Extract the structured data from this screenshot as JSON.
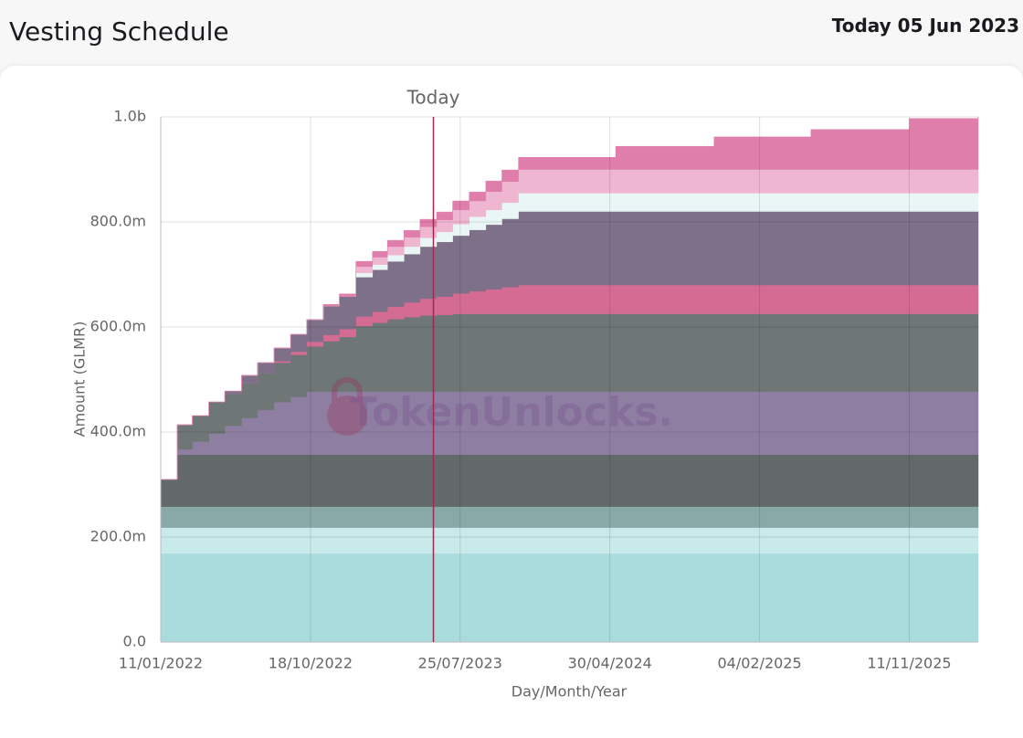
{
  "header": {
    "title": "Vesting Schedule",
    "date_label": "Today 05 Jun 2023"
  },
  "chart_data": {
    "type": "stacked-area",
    "x_label": "Day/Month/Year",
    "y_label": "Amount (GLMR)",
    "watermark": "TokenUnlocks.",
    "today": {
      "label": "Today",
      "date": "2023-06-05",
      "color": "#a0284f"
    },
    "grid": true,
    "step": true,
    "xlim": [
      "2022-01-11",
      "2026-03-20"
    ],
    "xticks": [
      {
        "value": "2022-01-11",
        "label": "11/01/2022"
      },
      {
        "value": "2022-10-18",
        "label": "18/10/2022"
      },
      {
        "value": "2023-07-25",
        "label": "25/07/2023"
      },
      {
        "value": "2024-04-30",
        "label": "30/04/2024"
      },
      {
        "value": "2025-02-04",
        "label": "04/02/2025"
      },
      {
        "value": "2025-11-11",
        "label": "11/11/2025"
      }
    ],
    "ylim": [
      0,
      1000000000
    ],
    "yticks": [
      {
        "value": 0,
        "label": "0.0"
      },
      {
        "value": 200000000,
        "label": "200.0m"
      },
      {
        "value": 400000000,
        "label": "400.0m"
      },
      {
        "value": 600000000,
        "label": "600.0m"
      },
      {
        "value": 800000000,
        "label": "800.0m"
      },
      {
        "value": 1000000000,
        "label": "1.0b"
      }
    ],
    "x": [
      "2022-01-11",
      "2022-02-11",
      "2022-03-11",
      "2022-04-11",
      "2022-05-11",
      "2022-06-11",
      "2022-07-11",
      "2022-08-11",
      "2022-09-11",
      "2022-10-11",
      "2022-11-11",
      "2022-12-11",
      "2023-01-11",
      "2023-02-11",
      "2023-03-11",
      "2023-04-11",
      "2023-05-11",
      "2023-06-11",
      "2023-07-11",
      "2023-08-11",
      "2023-09-11",
      "2023-10-11",
      "2023-11-11",
      "2024-05-11",
      "2024-11-11",
      "2025-05-11",
      "2025-11-11",
      "2026-03-20"
    ],
    "series": [
      {
        "color": "#abdcdd",
        "values": [
          169000000,
          169000000,
          169000000,
          169000000,
          169000000,
          169000000,
          169000000,
          169000000,
          169000000,
          169000000,
          169000000,
          169000000,
          169000000,
          169000000,
          169000000,
          169000000,
          169000000,
          169000000,
          169000000,
          169000000,
          169000000,
          169000000,
          169000000,
          169000000,
          169000000,
          169000000,
          169000000,
          169000000
        ]
      },
      {
        "color": "#c9eaea",
        "values": [
          49000000,
          49000000,
          49000000,
          49000000,
          49000000,
          49000000,
          49000000,
          49000000,
          49000000,
          49000000,
          49000000,
          49000000,
          49000000,
          49000000,
          49000000,
          49000000,
          49000000,
          49000000,
          49000000,
          49000000,
          49000000,
          49000000,
          49000000,
          49000000,
          49000000,
          49000000,
          49000000,
          49000000
        ]
      },
      {
        "color": "#88a9a8",
        "values": [
          40000000,
          40000000,
          40000000,
          40000000,
          40000000,
          40000000,
          40000000,
          40000000,
          40000000,
          40000000,
          40000000,
          40000000,
          40000000,
          40000000,
          40000000,
          40000000,
          40000000,
          40000000,
          40000000,
          40000000,
          40000000,
          40000000,
          40000000,
          40000000,
          40000000,
          40000000,
          40000000,
          40000000
        ]
      },
      {
        "color": "#636969",
        "values": [
          52000000,
          99000000,
          99000000,
          99000000,
          99000000,
          99000000,
          99000000,
          99000000,
          99000000,
          99000000,
          99000000,
          99000000,
          99000000,
          99000000,
          99000000,
          99000000,
          99000000,
          99000000,
          99000000,
          99000000,
          99000000,
          99000000,
          99000000,
          99000000,
          99000000,
          99000000,
          99000000,
          99000000
        ]
      },
      {
        "color": "#8e7fa2",
        "values": [
          0,
          10000000,
          25000000,
          40000000,
          55000000,
          70000000,
          85000000,
          100000000,
          110000000,
          120000000,
          120000000,
          120000000,
          120000000,
          120000000,
          120000000,
          120000000,
          120000000,
          120000000,
          120000000,
          120000000,
          120000000,
          120000000,
          120000000,
          120000000,
          120000000,
          120000000,
          120000000,
          120000000
        ]
      },
      {
        "color": "#6e7676",
        "values": [
          0,
          47000000,
          49000000,
          60000000,
          61000000,
          66000000,
          70000000,
          75000000,
          80000000,
          86000000,
          96000000,
          104000000,
          125000000,
          131000000,
          138000000,
          142000000,
          145000000,
          146000000,
          148000000,
          148000000,
          148000000,
          148000000,
          148000000,
          148000000,
          148000000,
          148000000,
          148000000,
          148000000
        ]
      },
      {
        "color": "#d46b93",
        "values": [
          0,
          0,
          0,
          0,
          0,
          0,
          0,
          3000000,
          6000000,
          9000000,
          12000000,
          15000000,
          18000000,
          21000000,
          24000000,
          28000000,
          32000000,
          35000000,
          39000000,
          43000000,
          47000000,
          51000000,
          55000000,
          55000000,
          55000000,
          55000000,
          55000000,
          55000000
        ]
      },
      {
        "color": "#7f7089",
        "values": [
          0,
          0,
          0,
          0,
          5000000,
          15000000,
          20000000,
          25000000,
          33000000,
          42000000,
          55000000,
          62000000,
          75000000,
          80000000,
          86000000,
          92000000,
          99000000,
          104000000,
          110000000,
          117000000,
          123000000,
          130000000,
          140000000,
          140000000,
          140000000,
          140000000,
          140000000,
          140000000
        ]
      },
      {
        "color": "#eaf6f6",
        "values": [
          0,
          0,
          0,
          0,
          0,
          0,
          0,
          0,
          0,
          0,
          0,
          0,
          8000000,
          10000000,
          12000000,
          14000000,
          17000000,
          19000000,
          22000000,
          25000000,
          28000000,
          31000000,
          35000000,
          35000000,
          35000000,
          35000000,
          35000000,
          35000000
        ]
      },
      {
        "color": "#efb6d1",
        "values": [
          0,
          0,
          0,
          0,
          0,
          0,
          0,
          0,
          0,
          0,
          0,
          0,
          12000000,
          14000000,
          16000000,
          18000000,
          21000000,
          23000000,
          27000000,
          30000000,
          35000000,
          40000000,
          45000000,
          45000000,
          45000000,
          45000000,
          45000000,
          45000000
        ]
      },
      {
        "color": "#e07eab",
        "values": [
          0,
          0,
          0,
          0,
          0,
          0,
          0,
          0,
          0,
          0,
          3000000,
          5000000,
          10000000,
          11000000,
          12000000,
          13000000,
          14000000,
          15000000,
          17000000,
          17000000,
          20000000,
          22000000,
          23000000,
          44000000,
          62000000,
          76000000,
          97000000,
          100000000
        ]
      }
    ]
  }
}
